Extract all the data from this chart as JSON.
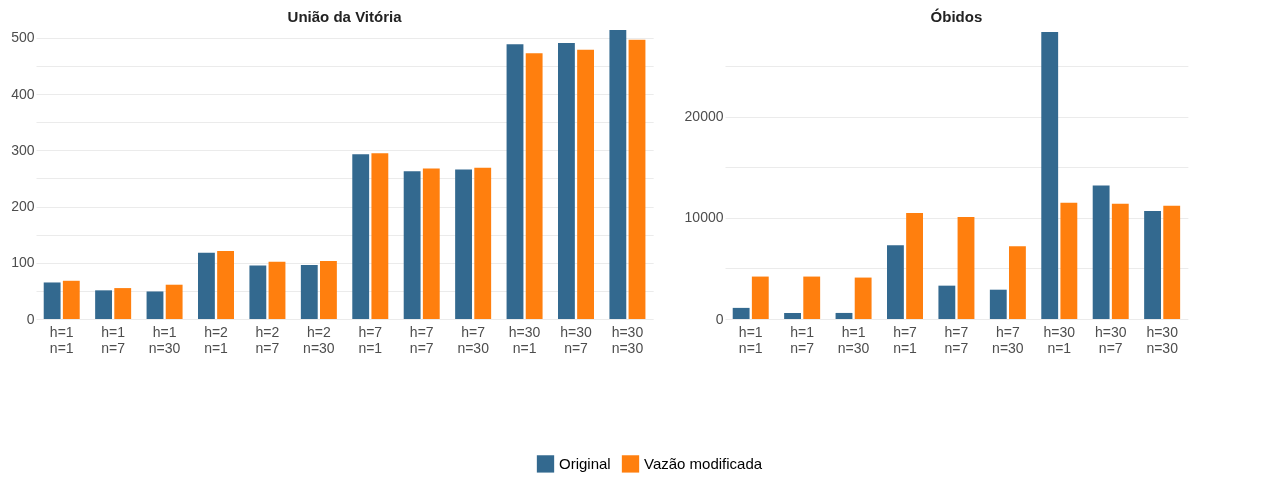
{
  "chart_data": [
    {
      "type": "bar",
      "title": "União da Vitória",
      "categories": [
        "h=1\nn=1",
        "h=1\nn=7",
        "h=1\nn=30",
        "h=2\nn=1",
        "h=2\nn=7",
        "h=2\nn=30",
        "h=7\nn=1",
        "h=7\nn=7",
        "h=7\nn=30",
        "h=30\nn=1",
        "h=30\nn=7",
        "h=30\nn=30"
      ],
      "series": [
        {
          "name": "Original",
          "color": "#33698f",
          "values": [
            65,
            51,
            49,
            118,
            95,
            96,
            293,
            263,
            266,
            489,
            491,
            514
          ]
        },
        {
          "name": "Vazão modificada",
          "color": "#ff7f0e",
          "values": [
            68,
            55,
            61,
            121,
            102,
            103,
            295,
            268,
            269,
            473,
            479,
            497
          ]
        }
      ],
      "ylim": [
        0,
        516
      ],
      "yticks": [
        0,
        {
          "value": 50,
          "label": null
        },
        100,
        {
          "value": 150,
          "label": null
        },
        200,
        {
          "value": 250,
          "label": null
        },
        300,
        {
          "value": 350,
          "label": null
        },
        400,
        {
          "value": 450,
          "label": null
        },
        500
      ],
      "grid": "y",
      "legend": "bottom"
    },
    {
      "type": "bar",
      "title": "Óbidos",
      "categories": [
        "h=1\nn=1",
        "h=1\nn=7",
        "h=1\nn=30",
        "h=7\nn=1",
        "h=7\nn=7",
        "h=7\nn=30",
        "h=30\nn=1",
        "h=30\nn=7",
        "h=30\nn=30"
      ],
      "series": [
        {
          "name": "Original",
          "color": "#33698f",
          "values": [
            1100,
            600,
            600,
            7300,
            3300,
            2900,
            28400,
            13200,
            10700
          ]
        },
        {
          "name": "Vazão modificada",
          "color": "#ff7f0e",
          "values": [
            4200,
            4200,
            4100,
            10500,
            10100,
            7200,
            11500,
            11400,
            11200
          ]
        }
      ],
      "ylim": [
        0,
        28700
      ],
      "yticks": [
        0,
        {
          "value": 5000,
          "label": null
        },
        10000,
        {
          "value": 15000,
          "label": null
        },
        20000,
        {
          "value": 25000,
          "label": null
        }
      ],
      "grid": "y",
      "legend": "bottom"
    }
  ]
}
